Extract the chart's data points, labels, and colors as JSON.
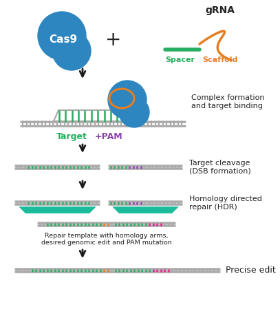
{
  "fig_width": 4.07,
  "fig_height": 4.75,
  "dpi": 100,
  "bg_color": "#ffffff",
  "cas9_color": "#2E86C1",
  "grna_color": "#E67E22",
  "spacer_color": "#27AE60",
  "dna_gray": "#AAAAAA",
  "dna_green": "#27AE60",
  "dna_purple": "#8E44AD",
  "dna_orange": "#E67E22",
  "dna_pink": "#E91E8C",
  "teal_color": "#1ABC9C",
  "arrow_color": "#1a1a1a",
  "text_color": "#222222",
  "label_complex": "Complex formation\nand target binding",
  "label_cleavage": "Target cleavage\n(DSB formation)",
  "label_hdr": "Homology directed\nrepair (HDR)",
  "label_template": "Repair template with homology arms,\ndesired genomic edit and PAM mutation",
  "label_precise": "Precise edit",
  "label_target": "Target",
  "label_pam": "+PAM",
  "label_grna": "gRNA",
  "label_spacer": "Spacer",
  "label_scaffold": "Scaffold",
  "label_cas9": "Cas9"
}
